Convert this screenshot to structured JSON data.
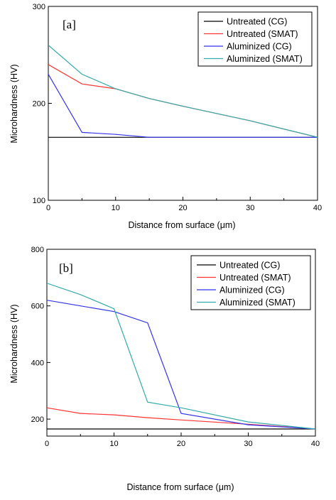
{
  "chart_data": [
    {
      "type": "line",
      "panel_label": "[a]",
      "xlabel": "Distance from surface (μm)",
      "ylabel": "Microhardness (HV)",
      "xlim": [
        0,
        40
      ],
      "ylim": [
        100,
        300
      ],
      "xticks": [
        "0",
        "10",
        "20",
        "30",
        "40"
      ],
      "yticks": [
        "100",
        "200",
        "300"
      ],
      "legend_position": "top-right",
      "series": [
        {
          "name": "Untreated (CG)",
          "color": "#000000",
          "x": [
            0,
            40
          ],
          "y": [
            165,
            165
          ]
        },
        {
          "name": "Untreated (SMAT)",
          "color": "#ff3333",
          "x": [
            0,
            5,
            10,
            15,
            20,
            30,
            40
          ],
          "y": [
            240,
            220,
            215,
            205,
            197,
            182,
            165
          ]
        },
        {
          "name": "Aluminized (CG)",
          "color": "#3333ee",
          "x": [
            0,
            5,
            10,
            15,
            20,
            30,
            40
          ],
          "y": [
            230,
            170,
            168,
            165,
            165,
            165,
            165
          ]
        },
        {
          "name": "Aluminized (SMAT)",
          "color": "#33aaaa",
          "x": [
            0,
            5,
            10,
            15,
            20,
            30,
            40
          ],
          "y": [
            260,
            230,
            215,
            205,
            197,
            182,
            165
          ]
        }
      ]
    },
    {
      "type": "line",
      "panel_label": "[b]",
      "xlabel": "Distance from surface (μm)",
      "ylabel": "Microhardness (HV)",
      "xlim": [
        0,
        40
      ],
      "ylim": [
        140,
        800
      ],
      "xticks": [
        "0",
        "10",
        "20",
        "30",
        "40"
      ],
      "yticks": [
        "200",
        "400",
        "600",
        "800"
      ],
      "legend_position": "top-right",
      "series": [
        {
          "name": "Untreated (CG)",
          "color": "#000000",
          "x": [
            0,
            40
          ],
          "y": [
            165,
            165
          ]
        },
        {
          "name": "Untreated (SMAT)",
          "color": "#ff3333",
          "x": [
            0,
            5,
            10,
            15,
            20,
            30,
            40
          ],
          "y": [
            240,
            220,
            215,
            205,
            197,
            182,
            165
          ]
        },
        {
          "name": "Aluminized (CG)",
          "color": "#3333ee",
          "x": [
            0,
            5,
            10,
            15,
            20,
            30,
            40
          ],
          "y": [
            620,
            600,
            580,
            540,
            220,
            180,
            165
          ]
        },
        {
          "name": "Aluminized (SMAT)",
          "color": "#33aaaa",
          "x": [
            0,
            5,
            10,
            15,
            20,
            30,
            40
          ],
          "y": [
            680,
            640,
            590,
            260,
            240,
            190,
            165
          ]
        }
      ]
    }
  ]
}
